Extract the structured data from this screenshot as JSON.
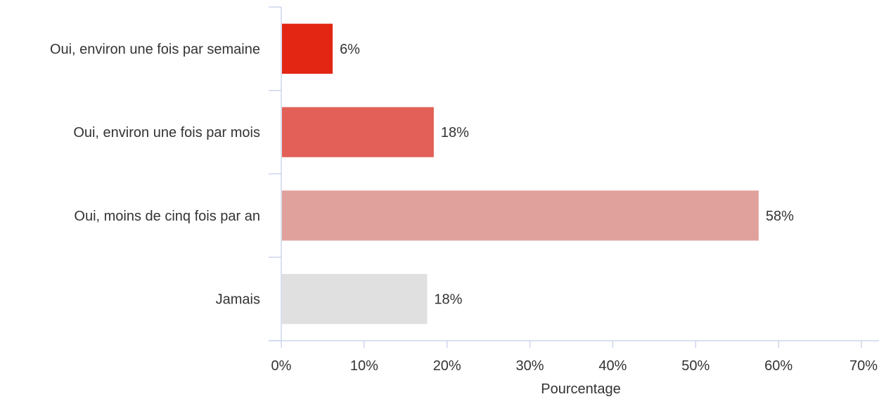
{
  "chart_data": {
    "type": "bar",
    "orientation": "horizontal",
    "title": "",
    "categories": [
      "Oui, environ une fois par semaine",
      "Oui, environ une fois par mois",
      "Oui, moins de cinq fois par an",
      "Jamais"
    ],
    "values": [
      6.2,
      18.4,
      57.6,
      17.6
    ],
    "value_labels": [
      "6%",
      "18%",
      "58%",
      "18%"
    ],
    "bar_colors": [
      "#e32614",
      "#e26057",
      "#e0a09b",
      "#e0e0e0"
    ],
    "xlabel": "Pourcentage",
    "ylabel": "",
    "xlim": [
      0,
      70
    ],
    "x_ticks": [
      0,
      10,
      20,
      30,
      40,
      50,
      60,
      70
    ],
    "x_tick_labels": [
      "0%",
      "10%",
      "20%",
      "30%",
      "40%",
      "50%",
      "60%",
      "70%"
    ],
    "grid": false,
    "legend": "none"
  }
}
